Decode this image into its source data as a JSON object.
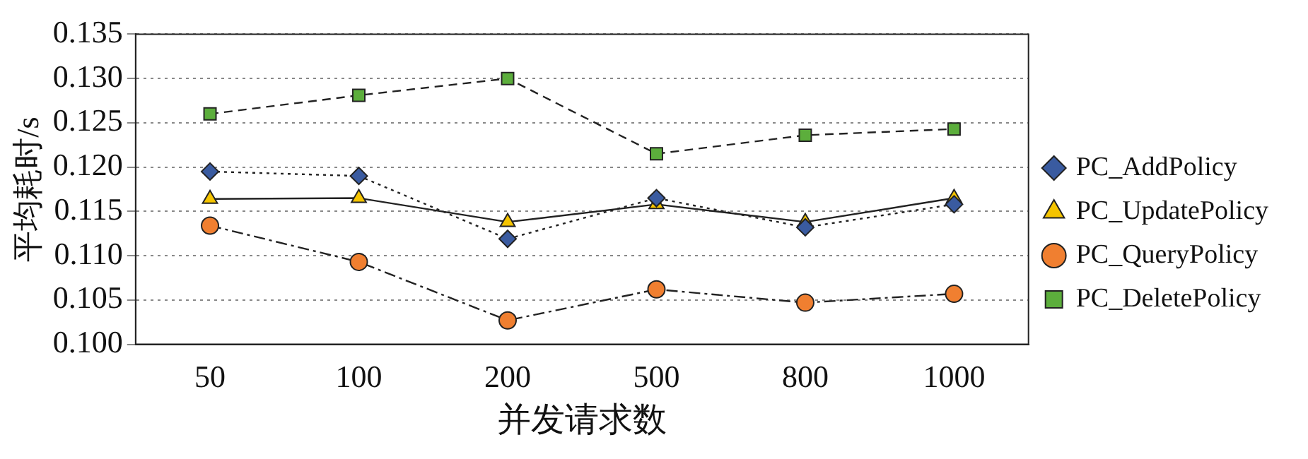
{
  "chart_data": {
    "type": "line",
    "xlabel": "并发请求数",
    "ylabel": "平均耗时/s",
    "categories": [
      "50",
      "100",
      "200",
      "500",
      "800",
      "1000"
    ],
    "series": [
      {
        "name": "PC_AddPolicy",
        "color": "#3a5ba0",
        "marker": "diamond",
        "line_style": "dotted",
        "values": [
          0.1195,
          0.119,
          0.1119,
          0.1165,
          0.1132,
          0.1158
        ]
      },
      {
        "name": "PC_UpdatePolicy",
        "color": "#f5c400",
        "marker": "triangle",
        "line_style": "solid",
        "values": [
          0.1164,
          0.1165,
          0.1138,
          0.1158,
          0.1138,
          0.1165
        ]
      },
      {
        "name": "PC_QueryPolicy",
        "color": "#f07f30",
        "marker": "circle",
        "line_style": "dashdot",
        "values": [
          0.1134,
          0.1093,
          0.1027,
          0.1062,
          0.1047,
          0.1057
        ]
      },
      {
        "name": "PC_DeletePolicy",
        "color": "#5cae3c",
        "marker": "square",
        "line_style": "dashed",
        "values": [
          0.126,
          0.1281,
          0.13,
          0.1215,
          0.1236,
          0.1243
        ]
      }
    ],
    "ylim": [
      0.1,
      0.135
    ],
    "yticks": [
      {
        "value": 0.1,
        "label": "0.100"
      },
      0.105,
      {
        "value": 0.11,
        "label": "0.110"
      },
      0.115,
      {
        "value": 0.12,
        "label": "0.120"
      },
      0.125,
      {
        "value": 0.13,
        "label": "0.130"
      },
      0.135
    ],
    "grid": "y",
    "legend": "right"
  }
}
